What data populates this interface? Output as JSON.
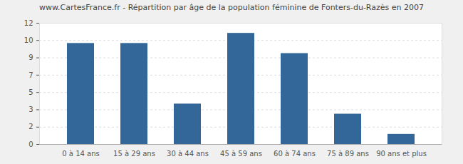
{
  "chart_data": {
    "type": "bar",
    "title": "www.CartesFrance.fr - Répartition par âge de la population féminine de Fonters-du-Razès en 2007",
    "categories": [
      "0 à 14 ans",
      "15 à 29 ans",
      "30 à 44 ans",
      "45 à 59 ans",
      "60 à 74 ans",
      "75 à 89 ans",
      "90 ans et plus"
    ],
    "values": [
      10,
      10,
      4,
      11,
      9,
      3,
      1
    ],
    "color": "#336699",
    "ylim": [
      0,
      12
    ],
    "yticks": [
      0,
      {
        "value": 1.71,
        "label": "2"
      },
      {
        "value": 3.43,
        "label": "3"
      },
      {
        "value": 5.14,
        "label": "5"
      },
      {
        "value": 6.86,
        "label": "7"
      },
      {
        "value": 8.57,
        "label": "9"
      },
      {
        "value": 10.29,
        "label": "10"
      },
      12
    ],
    "grid": true
  }
}
